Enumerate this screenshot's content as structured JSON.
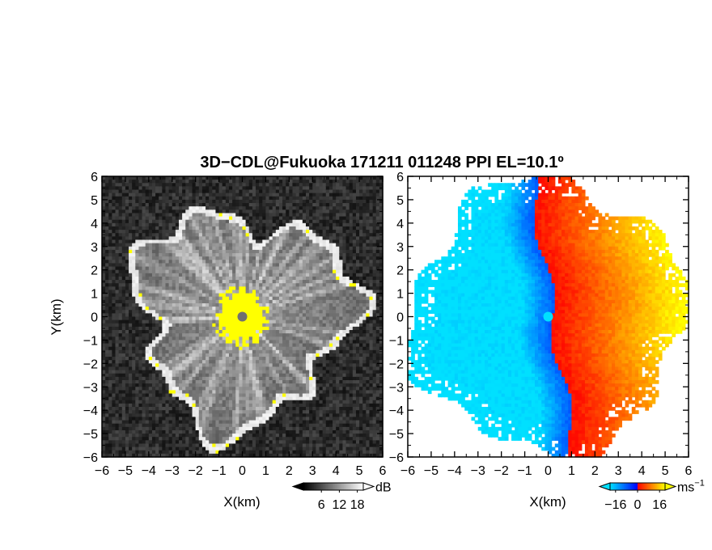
{
  "title": "3D−CDL@Fukuoka 171211 011248 PPI EL=10.1º",
  "chart_data": [
    {
      "type": "heatmap",
      "name": "reflectivity-ppi",
      "xlabel": "X(km)",
      "ylabel": "Y(km)",
      "xlim": [
        -6,
        6
      ],
      "ylim": [
        -6,
        6
      ],
      "x_ticks": [
        -6,
        -5,
        -4,
        -3,
        -2,
        -1,
        0,
        1,
        2,
        3,
        4,
        5,
        6
      ],
      "y_ticks": [
        -6,
        -5,
        -4,
        -3,
        -2,
        -1,
        0,
        1,
        2,
        3,
        4,
        5,
        6
      ],
      "x_tick_labels": [
        "−6",
        "−5",
        "−4",
        "−3",
        "−2",
        "−1",
        "0",
        "1",
        "2",
        "3",
        "4",
        "5",
        "6"
      ],
      "y_tick_labels": [
        "−6",
        "−5",
        "−4",
        "−3",
        "−2",
        "−1",
        "0",
        "1",
        "2",
        "3",
        "4",
        "5",
        "6"
      ],
      "echo_radius_km": 4.6,
      "saturated_core_radius_km": 1.1,
      "colorbar": {
        "unit": "dB",
        "ticks": [
          6,
          12,
          18
        ],
        "tick_labels": [
          "6",
          "12",
          "18"
        ],
        "range": [
          0,
          20
        ],
        "colors": [
          "#000000",
          "#ffffff"
        ],
        "saturation_color": "#ffff00"
      },
      "grid": false
    },
    {
      "type": "heatmap",
      "name": "doppler-velocity-ppi",
      "xlabel": "X(km)",
      "ylabel": "",
      "xlim": [
        -6,
        6
      ],
      "ylim": [
        -6,
        6
      ],
      "x_ticks": [
        -6,
        -5,
        -4,
        -3,
        -2,
        -1,
        0,
        1,
        2,
        3,
        4,
        5,
        6
      ],
      "y_ticks": [
        -6,
        -5,
        -4,
        -3,
        -2,
        -1,
        0,
        1,
        2,
        3,
        4,
        5,
        6
      ],
      "x_tick_labels": [
        "−6",
        "−5",
        "−4",
        "−3",
        "−2",
        "−1",
        "0",
        "1",
        "2",
        "3",
        "4",
        "5",
        "6"
      ],
      "y_tick_labels": [
        "−6",
        "−5",
        "−4",
        "−3",
        "−2",
        "−1",
        "0",
        "1",
        "2",
        "3",
        "4",
        "5",
        "6"
      ],
      "echo_radius_km": 5.8,
      "colorbar": {
        "unit": "ms⁻¹",
        "unit_base": "ms",
        "unit_exp": "−1",
        "ticks": [
          -16,
          0,
          16
        ],
        "tick_labels": [
          "−16",
          "0",
          "16"
        ],
        "range": [
          -20,
          20
        ],
        "colors": [
          "#0000ff",
          "#00e0ff",
          "#ff0000",
          "#ffff00"
        ]
      },
      "grid": false
    }
  ]
}
